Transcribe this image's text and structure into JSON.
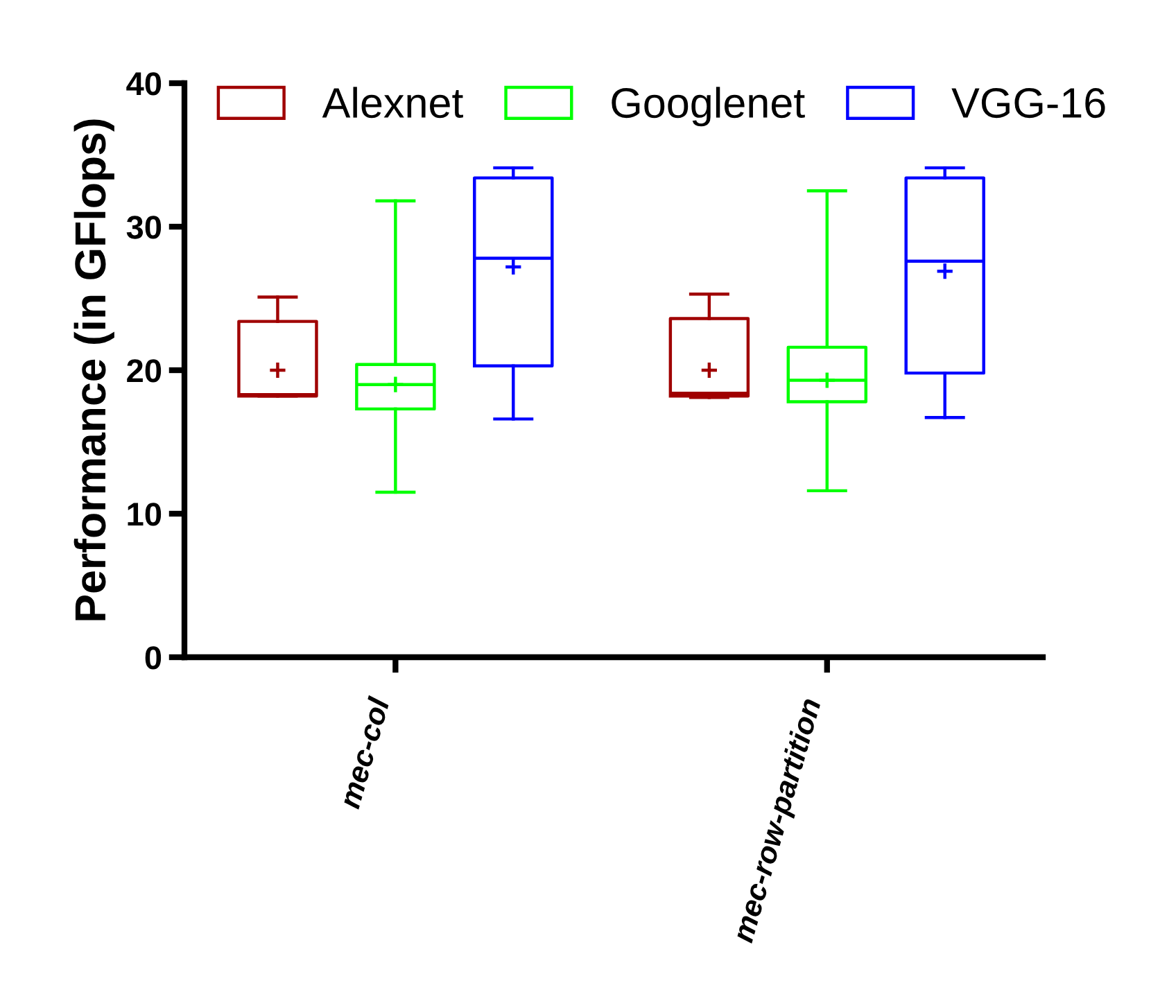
{
  "chart_data": {
    "type": "box",
    "ylabel": "Performance (in GFlops)",
    "categories": [
      "mec-col",
      "mec-row-partition"
    ],
    "ylim": [
      0,
      40
    ],
    "yticks": [
      0,
      10,
      20,
      30,
      40
    ],
    "grid": false,
    "legend": "top",
    "marker": "cross",
    "series": [
      {
        "name": "Alexnet",
        "color": "#a00000",
        "boxes": [
          {
            "low": 18.2,
            "q1": 18.2,
            "median": 18.3,
            "q3": 23.4,
            "high": 25.1,
            "mean": 20.0
          },
          {
            "low": 18.1,
            "q1": 18.2,
            "median": 18.4,
            "q3": 23.6,
            "high": 25.3,
            "mean": 20.0
          }
        ]
      },
      {
        "name": "Googlenet",
        "color": "#00ff00",
        "boxes": [
          {
            "low": 11.5,
            "q1": 17.3,
            "median": 19.0,
            "q3": 20.4,
            "high": 31.8,
            "mean": 19.0
          },
          {
            "low": 11.6,
            "q1": 17.8,
            "median": 19.3,
            "q3": 21.6,
            "high": 32.5,
            "mean": 19.3
          }
        ]
      },
      {
        "name": "VGG-16",
        "color": "#0000ff",
        "boxes": [
          {
            "low": 16.6,
            "q1": 20.3,
            "median": 27.8,
            "q3": 33.4,
            "high": 34.1,
            "mean": 27.2
          },
          {
            "low": 16.7,
            "q1": 19.8,
            "median": 27.6,
            "q3": 33.4,
            "high": 34.1,
            "mean": 26.9
          }
        ]
      }
    ]
  }
}
